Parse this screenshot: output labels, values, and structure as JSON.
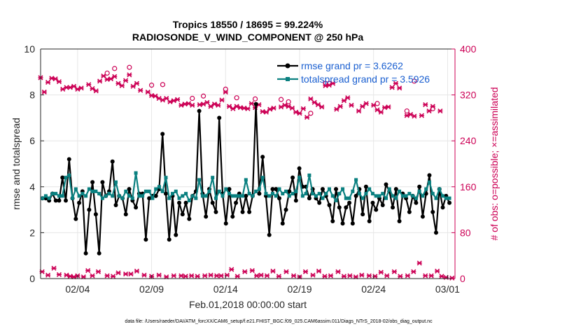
{
  "chart_data": {
    "type": "line",
    "title_line1": "Tropics 18550 / 18695 = 99.224%",
    "title_line2": "RADIOSONDE_V_WIND_COMPONENT @ 250 hPa",
    "xlabel": "Feb.01,2018 00:00:00 start",
    "ylabel": "rmse and totalspread",
    "ylabel_right": "# of obs: o=possible; ×=assimilated",
    "footer": "data file: /Users/raeder/DAI/ATM_forcXX/CAM6_setup/f.e21.FHIST_BGC.f09_025.CAM6assim.011/Diags_NTrS_2018-02/obs_diag_output.nc",
    "xlim": [
      0,
      28
    ],
    "ylim": [
      0,
      10
    ],
    "ylim_right": [
      0,
      400
    ],
    "x_ticks": [
      {
        "x": 2.5,
        "label": "02/04"
      },
      {
        "x": 7.5,
        "label": "02/09"
      },
      {
        "x": 12.5,
        "label": "02/14"
      },
      {
        "x": 17.5,
        "label": "02/19"
      },
      {
        "x": 22.5,
        "label": "02/24"
      },
      {
        "x": 27.5,
        "label": "03/01"
      }
    ],
    "y_ticks": [
      0,
      2,
      4,
      6,
      8,
      10
    ],
    "y_ticks_right": [
      0,
      80,
      160,
      240,
      320,
      400
    ],
    "legend": [
      {
        "label": "rmse grand pr = 3.6262",
        "color": "#000000"
      },
      {
        "label": "totalspread grand pr = 3.5926",
        "color": "#0a8080"
      }
    ],
    "series": [
      {
        "name": "rmse",
        "color": "#000000",
        "values": [
          3.5,
          3.5,
          3.4,
          3.7,
          3.4,
          3.4,
          4.4,
          3.4,
          5.2,
          3.5,
          2.6,
          3.3,
          3.8,
          1.1,
          3.0,
          4.2,
          2.8,
          1.1,
          4.2,
          3.6,
          3.8,
          5.1,
          3.2,
          3.6,
          3.5,
          2.8,
          3.9,
          3.4,
          3.1,
          3.7,
          3.7,
          1.7,
          3.5,
          3.6,
          3.6,
          3.9,
          6.3,
          3.7,
          1.7,
          3.6,
          1.9,
          3.3,
          2.8,
          3.3,
          2.6,
          3.6,
          3.8,
          7.3,
          3.7,
          2.7,
          3.9,
          3.3,
          2.9,
          7.0,
          3.7,
          2.4,
          3.9,
          2.7,
          3.3,
          3.7,
          2.9,
          3.6,
          2.9,
          3.6,
          7.6,
          3.7,
          5.3,
          3.6,
          1.9,
          3.9,
          3.9,
          3.5,
          2.4,
          3.0,
          3.8,
          4.4,
          3.4,
          4.8,
          4.0,
          4.0,
          3.5,
          3.9,
          3.5,
          3.3,
          3.9,
          3.6,
          3.2,
          2.5,
          3.9,
          3.1,
          2.4,
          3.1,
          3.3,
          2.4,
          3.6,
          3.9,
          2.8,
          4.0,
          2.5,
          3.3,
          3.0,
          3.5,
          3.2,
          4.1,
          3.8,
          3.1,
          3.9,
          2.5,
          3.7,
          3.5,
          2.9,
          3.6,
          3.3,
          4.0,
          2.7,
          3.7,
          4.5,
          2.9,
          2.0,
          3.9,
          3.1,
          3.6,
          3.3
        ],
        "x_start": 0.125,
        "x_step": 0.2254
      },
      {
        "name": "totalspread",
        "color": "#0a8080",
        "values": [
          3.5,
          3.6,
          3.5,
          3.7,
          3.7,
          3.6,
          3.6,
          4.4,
          4.5,
          3.5,
          3.9,
          3.6,
          3.7,
          3.6,
          3.9,
          3.8,
          3.8,
          3.7,
          3.5,
          3.6,
          3.7,
          3.6,
          4.2,
          3.6,
          3.5,
          3.8,
          3.6,
          3.5,
          4.6,
          3.6,
          3.6,
          3.8,
          3.8,
          3.5,
          3.9,
          4.0,
          3.8,
          4.4,
          3.5,
          3.7,
          3.8,
          3.5,
          3.6,
          3.7,
          3.4,
          3.6,
          3.5,
          4.3,
          3.6,
          3.6,
          3.8,
          4.4,
          3.5,
          3.8,
          3.6,
          3.9,
          3.7,
          3.6,
          3.6,
          3.6,
          3.6,
          4.3,
          3.7,
          3.6,
          3.8,
          3.9,
          4.4,
          3.7,
          3.6,
          3.7,
          3.6,
          3.9,
          3.7,
          3.8,
          3.6,
          3.7,
          3.8,
          4.4,
          3.6,
          3.7,
          4.5,
          3.7,
          3.6,
          3.7,
          3.5,
          3.7,
          3.9,
          3.6,
          3.4,
          3.7,
          3.9,
          3.5,
          3.5,
          3.8,
          4.3,
          3.7,
          3.5,
          3.7,
          3.9,
          3.7,
          3.6,
          3.6,
          3.7,
          3.5,
          3.9,
          3.6,
          3.5,
          3.8,
          3.6,
          3.6,
          3.7,
          3.6,
          3.5,
          3.8,
          3.6,
          3.9,
          4.2,
          3.7,
          3.5,
          3.9,
          3.6,
          3.5,
          3.5
        ],
        "x_start": 0.125,
        "x_step": 0.2254
      }
    ],
    "obs_assimilated": {
      "color": "#cc0055",
      "high": [
        {
          "x": 0.0,
          "v": 350
        },
        {
          "x": 0.25,
          "v": 325
        },
        {
          "x": 0.5,
          "v": 342
        },
        {
          "x": 0.75,
          "v": 349
        },
        {
          "x": 1.0,
          "v": 348
        },
        {
          "x": 1.25,
          "v": 343
        },
        {
          "x": 1.5,
          "v": 330
        },
        {
          "x": 1.75,
          "v": 333
        },
        {
          "x": 2.0,
          "v": 333
        },
        {
          "x": 2.25,
          "v": 335
        },
        {
          "x": 2.5,
          "v": 330
        },
        {
          "x": 2.75,
          "v": 332
        },
        {
          "x": 3.25,
          "v": 338
        },
        {
          "x": 3.5,
          "v": 331
        },
        {
          "x": 3.75,
          "v": 327
        },
        {
          "x": 4.0,
          "v": 344
        },
        {
          "x": 4.25,
          "v": 353
        },
        {
          "x": 4.5,
          "v": 347
        },
        {
          "x": 4.75,
          "v": 348
        },
        {
          "x": 5.0,
          "v": 352
        },
        {
          "x": 5.25,
          "v": 340
        },
        {
          "x": 5.5,
          "v": 336
        },
        {
          "x": 5.75,
          "v": 345
        },
        {
          "x": 6.0,
          "v": 355
        },
        {
          "x": 6.25,
          "v": 335
        },
        {
          "x": 6.5,
          "v": 340
        },
        {
          "x": 6.75,
          "v": 328
        },
        {
          "x": 7.25,
          "v": 325
        },
        {
          "x": 7.5,
          "v": 319
        },
        {
          "x": 7.75,
          "v": 318
        },
        {
          "x": 8.0,
          "v": 314
        },
        {
          "x": 8.25,
          "v": 311
        },
        {
          "x": 8.5,
          "v": 314
        },
        {
          "x": 8.75,
          "v": 308
        },
        {
          "x": 9.0,
          "v": 310
        },
        {
          "x": 9.25,
          "v": 312
        },
        {
          "x": 9.5,
          "v": 302
        },
        {
          "x": 9.75,
          "v": 304
        },
        {
          "x": 10.0,
          "v": 305
        },
        {
          "x": 10.25,
          "v": 302
        },
        {
          "x": 10.75,
          "v": 303
        },
        {
          "x": 11.0,
          "v": 304
        },
        {
          "x": 11.25,
          "v": 307
        },
        {
          "x": 11.5,
          "v": 300
        },
        {
          "x": 11.75,
          "v": 304
        },
        {
          "x": 12.0,
          "v": 302
        },
        {
          "x": 12.25,
          "v": 311
        },
        {
          "x": 12.5,
          "v": 325
        },
        {
          "x": 12.75,
          "v": 300
        },
        {
          "x": 13.0,
          "v": 296
        },
        {
          "x": 13.25,
          "v": 300
        },
        {
          "x": 13.5,
          "v": 298
        },
        {
          "x": 13.75,
          "v": 297
        },
        {
          "x": 14.0,
          "v": 296
        },
        {
          "x": 14.25,
          "v": 305
        },
        {
          "x": 14.5,
          "v": 298
        },
        {
          "x": 14.75,
          "v": 303
        },
        {
          "x": 15.0,
          "v": 291
        },
        {
          "x": 15.25,
          "v": 290
        },
        {
          "x": 15.5,
          "v": 295
        },
        {
          "x": 15.75,
          "v": 297
        },
        {
          "x": 16.25,
          "v": 299
        },
        {
          "x": 16.5,
          "v": 302
        },
        {
          "x": 16.75,
          "v": 300
        },
        {
          "x": 17.0,
          "v": 297
        },
        {
          "x": 17.25,
          "v": 290
        },
        {
          "x": 17.5,
          "v": 288
        },
        {
          "x": 17.75,
          "v": 296
        },
        {
          "x": 18.0,
          "v": 281
        },
        {
          "x": 18.25,
          "v": 313
        },
        {
          "x": 18.5,
          "v": 307
        },
        {
          "x": 18.75,
          "v": 303
        },
        {
          "x": 19.0,
          "v": 299
        },
        {
          "x": 19.25,
          "v": 336
        },
        {
          "x": 19.5,
          "v": 337
        },
        {
          "x": 19.75,
          "v": 340
        },
        {
          "x": 20.0,
          "v": 295
        },
        {
          "x": 20.25,
          "v": 300
        },
        {
          "x": 20.5,
          "v": 310
        },
        {
          "x": 20.75,
          "v": 315
        },
        {
          "x": 21.0,
          "v": 302
        },
        {
          "x": 21.5,
          "v": 292
        },
        {
          "x": 21.75,
          "v": 300
        },
        {
          "x": 22.0,
          "v": 305
        },
        {
          "x": 22.5,
          "v": 302
        },
        {
          "x": 22.75,
          "v": 294
        },
        {
          "x": 23.0,
          "v": 290
        },
        {
          "x": 23.25,
          "v": 298
        },
        {
          "x": 23.5,
          "v": 299
        },
        {
          "x": 23.75,
          "v": 333
        },
        {
          "x": 24.0,
          "v": 340
        },
        {
          "x": 24.25,
          "v": 332
        },
        {
          "x": 24.75,
          "v": 284
        },
        {
          "x": 25.0,
          "v": 286
        },
        {
          "x": 25.25,
          "v": 283
        },
        {
          "x": 25.75,
          "v": 284
        },
        {
          "x": 26.0,
          "v": 303
        },
        {
          "x": 26.25,
          "v": 292
        },
        {
          "x": 26.5,
          "v": 300
        },
        {
          "x": 27.0,
          "v": 292
        }
      ],
      "low": [
        {
          "x": 0.1,
          "v": 12
        },
        {
          "x": 0.5,
          "v": 6
        },
        {
          "x": 0.9,
          "v": 18
        },
        {
          "x": 1.25,
          "v": 7
        },
        {
          "x": 1.75,
          "v": 6
        },
        {
          "x": 2.0,
          "v": 4
        },
        {
          "x": 2.25,
          "v": 3
        },
        {
          "x": 2.5,
          "v": 5
        },
        {
          "x": 2.9,
          "v": 3
        },
        {
          "x": 3.2,
          "v": 14
        },
        {
          "x": 3.5,
          "v": 5
        },
        {
          "x": 3.9,
          "v": 12
        },
        {
          "x": 4.5,
          "v": 5
        },
        {
          "x": 4.9,
          "v": 4
        },
        {
          "x": 5.25,
          "v": 10
        },
        {
          "x": 5.75,
          "v": 8
        },
        {
          "x": 6.1,
          "v": 8
        },
        {
          "x": 6.5,
          "v": 13
        },
        {
          "x": 7.0,
          "v": 6
        },
        {
          "x": 7.5,
          "v": 4
        },
        {
          "x": 8.0,
          "v": 6
        },
        {
          "x": 8.5,
          "v": 3
        },
        {
          "x": 9.0,
          "v": 5
        },
        {
          "x": 9.5,
          "v": 5
        },
        {
          "x": 9.8,
          "v": 4
        },
        {
          "x": 10.2,
          "v": 5
        },
        {
          "x": 10.6,
          "v": 4
        },
        {
          "x": 11.1,
          "v": 5
        },
        {
          "x": 11.5,
          "v": 6
        },
        {
          "x": 11.9,
          "v": 5
        },
        {
          "x": 12.2,
          "v": 5
        },
        {
          "x": 12.6,
          "v": 6
        },
        {
          "x": 12.9,
          "v": 16
        },
        {
          "x": 13.3,
          "v": 4
        },
        {
          "x": 13.8,
          "v": 12
        },
        {
          "x": 14.3,
          "v": 14
        },
        {
          "x": 14.6,
          "v": 5
        },
        {
          "x": 14.9,
          "v": 6
        },
        {
          "x": 15.3,
          "v": 5
        },
        {
          "x": 15.7,
          "v": 13
        },
        {
          "x": 16.1,
          "v": 4
        },
        {
          "x": 16.6,
          "v": 12
        },
        {
          "x": 17.1,
          "v": 5
        },
        {
          "x": 17.5,
          "v": 3
        },
        {
          "x": 17.9,
          "v": 12
        },
        {
          "x": 18.4,
          "v": 6
        },
        {
          "x": 18.8,
          "v": 13
        },
        {
          "x": 19.2,
          "v": 4
        },
        {
          "x": 19.6,
          "v": 5
        },
        {
          "x": 20.1,
          "v": 12
        },
        {
          "x": 20.5,
          "v": 4
        },
        {
          "x": 20.9,
          "v": 5
        },
        {
          "x": 21.3,
          "v": 3
        },
        {
          "x": 21.7,
          "v": 6
        },
        {
          "x": 22.2,
          "v": 5
        },
        {
          "x": 22.6,
          "v": 4
        },
        {
          "x": 23.0,
          "v": 11
        },
        {
          "x": 23.4,
          "v": 5
        },
        {
          "x": 23.9,
          "v": 12
        },
        {
          "x": 24.3,
          "v": 4
        },
        {
          "x": 24.8,
          "v": 5
        },
        {
          "x": 25.2,
          "v": 12
        },
        {
          "x": 25.6,
          "v": 27
        },
        {
          "x": 26.0,
          "v": 5
        },
        {
          "x": 26.4,
          "v": 5
        },
        {
          "x": 26.8,
          "v": 13
        },
        {
          "x": 27.1,
          "v": 4
        },
        {
          "x": 27.4,
          "v": 2
        },
        {
          "x": 27.8,
          "v": 1
        }
      ]
    },
    "obs_possible": {
      "color": "#cc0055",
      "points": [
        {
          "x": 4.5,
          "v": 358
        },
        {
          "x": 5.0,
          "v": 366
        },
        {
          "x": 6.0,
          "v": 368
        },
        {
          "x": 7.5,
          "v": 337
        },
        {
          "x": 8.25,
          "v": 338
        },
        {
          "x": 10.25,
          "v": 314
        },
        {
          "x": 11.0,
          "v": 318
        },
        {
          "x": 12.5,
          "v": 330
        },
        {
          "x": 13.25,
          "v": 315
        },
        {
          "x": 14.5,
          "v": 313
        },
        {
          "x": 16.25,
          "v": 312
        },
        {
          "x": 16.75,
          "v": 308
        },
        {
          "x": 18.25,
          "v": 288
        },
        {
          "x": 19.25,
          "v": 340
        },
        {
          "x": 19.5,
          "v": 340
        },
        {
          "x": 22.75,
          "v": 305
        },
        {
          "x": 24.75,
          "v": 292
        },
        {
          "x": 25.25,
          "v": 344
        },
        {
          "x": 26.5,
          "v": 296
        }
      ]
    }
  }
}
